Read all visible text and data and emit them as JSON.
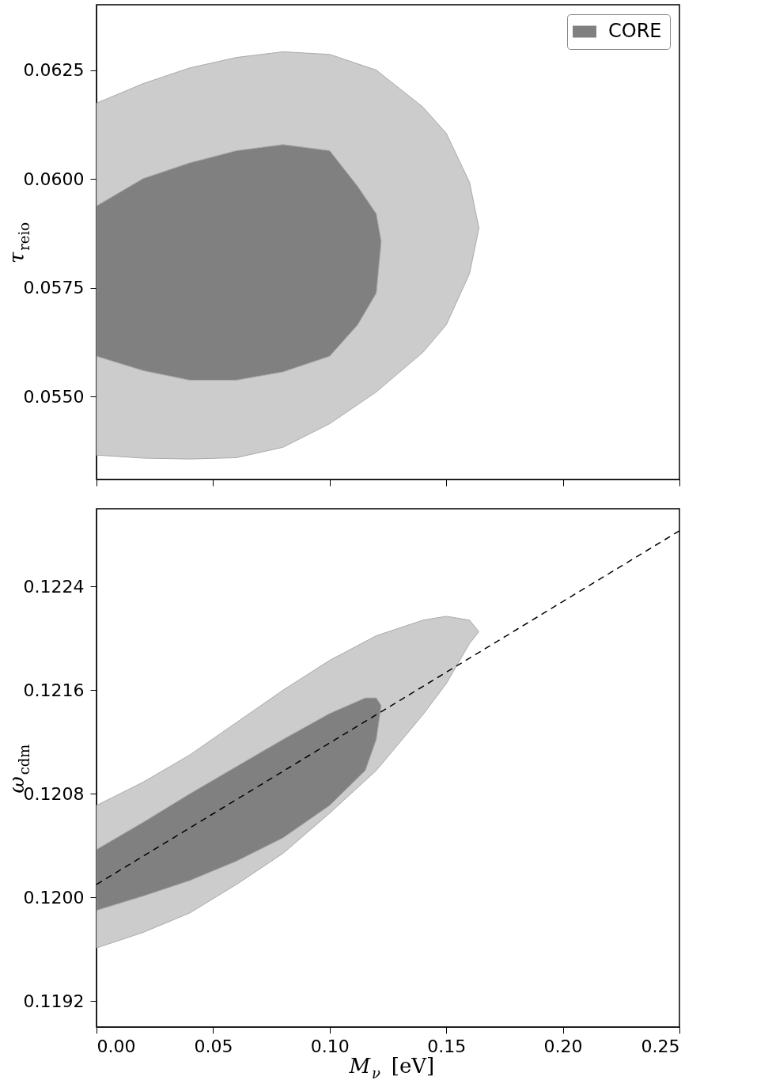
{
  "chart_data": [
    {
      "type": "area",
      "ylabel": "τ$_{reio}$",
      "xlim": [
        0,
        0.25
      ],
      "ylim": [
        0.0531,
        0.064
      ],
      "tick_labels": "y",
      "legend": "top right",
      "xticks": [
        {
          "value": 0,
          "label": null
        },
        {
          "value": 0.05,
          "label": null
        },
        {
          "value": 0.1,
          "label": null
        },
        {
          "value": 0.15,
          "label": null
        },
        {
          "value": 0.2,
          "label": null
        },
        {
          "value": 0.25,
          "label": null
        }
      ],
      "yticks": [
        {
          "value": 0.055,
          "label": "0.0550"
        },
        {
          "value": 0.0575,
          "label": "0.0575"
        },
        {
          "value": 0.06,
          "label": "0.0600"
        },
        {
          "value": 0.0625,
          "label": "0.0625"
        }
      ],
      "series": [
        {
          "color": "#cccccc",
          "x": [
            0,
            0.02,
            0.04,
            0.06,
            0.08,
            0.1,
            0.12,
            0.14,
            0.15,
            0.16,
            0.164,
            0.16,
            0.15,
            0.14,
            0.12,
            0.1,
            0.08,
            0.06,
            0.04,
            0.02,
            0
          ],
          "values": [
            0.06174,
            0.06219,
            0.06255,
            0.06279,
            0.06292,
            0.06286,
            0.0625,
            0.06165,
            0.06105,
            0.05992,
            0.05887,
            0.05783,
            0.05665,
            0.05602,
            0.05511,
            0.05438,
            0.05384,
            0.0536,
            0.05357,
            0.05359,
            0.05366
          ]
        },
        {
          "name": "CORE",
          "color": "#808080",
          "x": [
            0,
            0.02,
            0.04,
            0.06,
            0.08,
            0.1,
            0.112,
            0.12,
            0.1221,
            0.12,
            0.112,
            0.1,
            0.08,
            0.06,
            0.04,
            0.02,
            0
          ],
          "values": [
            0.05938,
            0.06001,
            0.06037,
            0.06065,
            0.06079,
            0.06065,
            0.05983,
            0.0592,
            0.05856,
            0.05738,
            0.05665,
            0.05593,
            0.05557,
            0.05538,
            0.05538,
            0.0556,
            0.05593
          ]
        }
      ]
    },
    {
      "type": "area",
      "xlabel": "M$_{ν}$ [eV]",
      "ylabel": "ω$_{cdm}$",
      "xlim": [
        0,
        0.25
      ],
      "ylim": [
        0.119,
        0.123
      ],
      "legend": "top right",
      "xticks": [
        {
          "value": 0,
          "label": "0.00"
        },
        {
          "value": 0.05,
          "label": "0.05"
        },
        {
          "value": 0.1,
          "label": "0.10"
        },
        {
          "value": 0.15,
          "label": "0.15"
        },
        {
          "value": 0.2,
          "label": "0.20"
        },
        {
          "value": 0.25,
          "label": "0.25"
        }
      ],
      "yticks": [
        0.1192,
        {
          "value": 0.12,
          "label": "0.1200"
        },
        0.1208,
        0.1216,
        0.1224
      ],
      "series": [
        {
          "color": "#cccccc",
          "x": [
            0,
            0.02,
            0.04,
            0.06,
            0.08,
            0.1,
            0.12,
            0.14,
            0.15,
            0.16,
            0.164,
            0.16,
            0.15,
            0.14,
            0.12,
            0.1,
            0.08,
            0.06,
            0.04,
            0.02,
            0
          ],
          "values": [
            0.12071,
            0.12089,
            0.1211,
            0.12135,
            0.1216,
            0.12183,
            0.12202,
            0.12214,
            0.12217,
            0.12214,
            0.12205,
            0.12196,
            0.12165,
            0.12141,
            0.12098,
            0.12065,
            0.12034,
            0.1201,
            0.11988,
            0.11973,
            0.11961
          ]
        },
        {
          "name": "CORE",
          "color": "#808080",
          "x": [
            0,
            0.02,
            0.04,
            0.06,
            0.08,
            0.1,
            0.1153,
            0.12,
            0.1221,
            0.12,
            0.1153,
            0.1,
            0.08,
            0.06,
            0.04,
            0.02,
            0
          ],
          "values": [
            0.12037,
            0.12058,
            0.1208,
            0.12101,
            0.12122,
            0.12142,
            0.12154,
            0.12154,
            0.12148,
            0.12122,
            0.12098,
            0.12071,
            0.12046,
            0.12028,
            0.12013,
            0.12001,
            0.1199
          ]
        },
        {
          "type": "line",
          "color": "#000000",
          "line_style": "dashed",
          "x": [
            0,
            0.25
          ],
          "values": [
            0.1201,
            0.12283
          ]
        }
      ]
    }
  ]
}
